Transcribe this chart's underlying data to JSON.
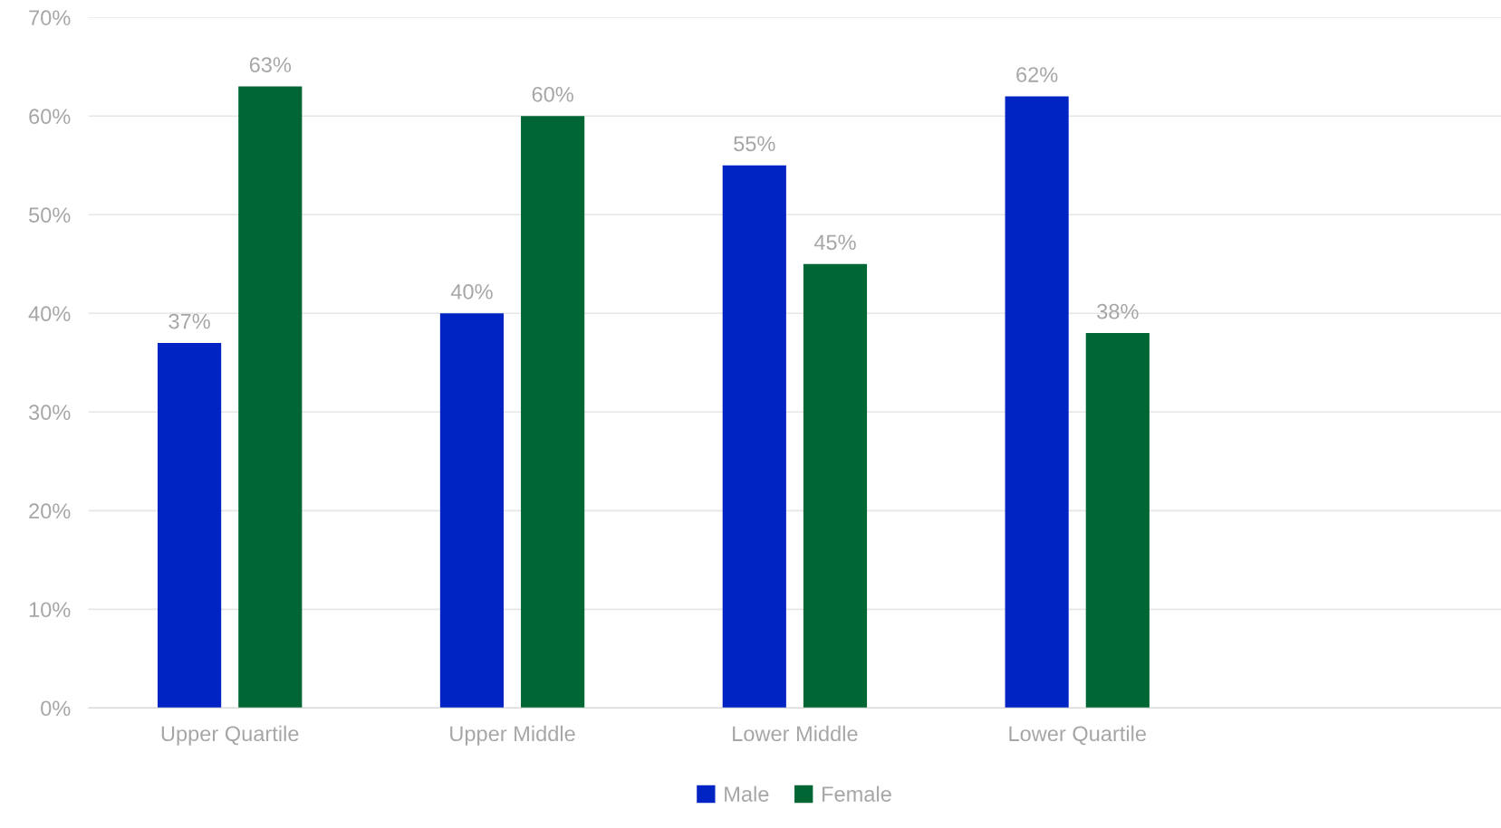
{
  "chart_data": {
    "type": "bar",
    "categories": [
      "Upper Quartile",
      "Upper Middle",
      "Lower Middle",
      "Lower Quartile",
      null
    ],
    "series": [
      {
        "name": "Male",
        "color": "#0023c4",
        "values": [
          37,
          40,
          55,
          62,
          null
        ],
        "value_labels": [
          "37%",
          "40%",
          "55%",
          "62%",
          null
        ]
      },
      {
        "name": "Female",
        "color": "#006633",
        "values": [
          63,
          60,
          45,
          38,
          null
        ],
        "value_labels": [
          "63%",
          "60%",
          "45%",
          "38%",
          null
        ]
      }
    ],
    "ylim": [
      0,
      70
    ],
    "yticks": [
      {
        "value": 0,
        "label": "0%"
      },
      {
        "value": 10,
        "label": "10%"
      },
      {
        "value": 20,
        "label": "20%"
      },
      {
        "value": 30,
        "label": "30%"
      },
      {
        "value": 40,
        "label": "40%"
      },
      {
        "value": 50,
        "label": "50%"
      },
      {
        "value": 60,
        "label": "60%"
      },
      {
        "value": 70,
        "label": "70%"
      }
    ],
    "grid": "y",
    "legend": "bottom"
  }
}
